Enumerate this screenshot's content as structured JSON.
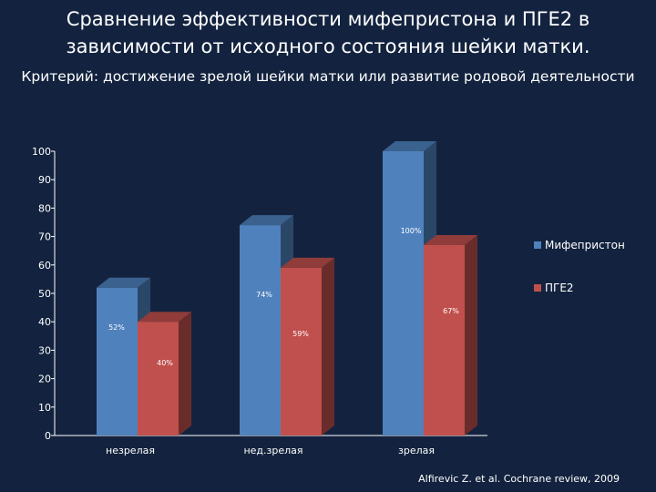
{
  "slide": {
    "title_line1": "Сравнение эффективности мифепристона и ПГЕ2 в",
    "title_line2": "зависимости от исходного состояния шейки матки.",
    "subtitle": "Критерий: достижение зрелой шейки матки или развитие родовой деятельности",
    "source": "Alfirevic Z. et al. Cochrane review, 2009"
  },
  "chart_data": {
    "type": "bar",
    "title": "",
    "xlabel": "",
    "ylabel": "",
    "ylim": [
      0,
      100
    ],
    "yticks": [
      0,
      10,
      20,
      30,
      40,
      50,
      60,
      70,
      80,
      90,
      100
    ],
    "grid": false,
    "legend_position": "right",
    "categories": [
      "незрелая",
      "нед.зрелая",
      "зрелая"
    ],
    "series": [
      {
        "name": "Мифепристон",
        "color": "#4f81bd",
        "values": [
          52,
          74,
          100
        ],
        "labels": [
          "52%",
          "74%",
          "100%"
        ]
      },
      {
        "name": "ПГЕ2",
        "color": "#c0504d",
        "values": [
          40,
          59,
          67
        ],
        "labels": [
          "40%",
          "59%",
          "67%"
        ]
      }
    ]
  }
}
